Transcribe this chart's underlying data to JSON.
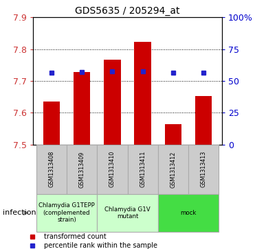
{
  "title": "GDS5635 / 205294_at",
  "samples": [
    "GSM1313408",
    "GSM1313409",
    "GSM1313410",
    "GSM1313411",
    "GSM1313412",
    "GSM1313413"
  ],
  "transformed_counts": [
    7.635,
    7.727,
    7.768,
    7.824,
    7.563,
    7.652
  ],
  "percentile_ranks": [
    56.5,
    57.2,
    57.3,
    57.3,
    56.5,
    56.5
  ],
  "ylim": [
    7.5,
    7.9
  ],
  "y_ticks": [
    7.5,
    7.6,
    7.7,
    7.8,
    7.9
  ],
  "right_yticks": [
    0,
    25,
    50,
    75,
    100
  ],
  "right_ylabels": [
    "0",
    "25",
    "50",
    "75",
    "100%"
  ],
  "bar_color": "#cc0000",
  "dot_color": "#2222cc",
  "bar_width": 0.55,
  "groups": [
    {
      "label": "Chlamydia G1TEPP\n(complemented\nstrain)",
      "start": 0,
      "end": 1,
      "color": "#ccffcc"
    },
    {
      "label": "Chlamydia G1V\nmutant",
      "start": 2,
      "end": 3,
      "color": "#ccffcc"
    },
    {
      "label": "mock",
      "start": 4,
      "end": 5,
      "color": "#55ee55"
    }
  ],
  "infection_label": "infection",
  "legend_items": [
    {
      "label": "transformed count",
      "color": "#cc0000"
    },
    {
      "label": "percentile rank within the sample",
      "color": "#2222cc"
    }
  ],
  "right_axis_color": "#0000cc",
  "tick_label_color": "#cc3333",
  "background_color": "#ffffff",
  "sample_box_color": "#cccccc",
  "sample_box_edge": "#aaaaaa",
  "group_box_edge": "#aaaaaa"
}
